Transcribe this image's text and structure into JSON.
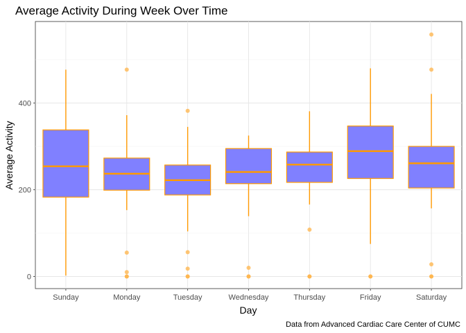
{
  "chart_data": {
    "type": "box",
    "title": "Average Activity During Week Over Time",
    "xlabel": "Day",
    "ylabel": "Average Activity",
    "caption": "Data from Advanced Cardiac Care Center of CUMC",
    "categories": [
      "Sunday",
      "Monday",
      "Tuesday",
      "Wednesday",
      "Thursday",
      "Friday",
      "Saturday"
    ],
    "y_ticks": [
      0,
      200,
      400
    ],
    "ylim": [
      -28,
      588
    ],
    "grid": true,
    "box_fill": "#8080ff",
    "line_color": "#ff9900",
    "outlier_color": "#ffb347",
    "boxes": [
      {
        "q1": 183,
        "median": 254,
        "q3": 338,
        "whisker_low": 2,
        "whisker_high": 477,
        "outliers": []
      },
      {
        "q1": 199,
        "median": 237,
        "q3": 273,
        "whisker_low": 153,
        "whisker_high": 372,
        "outliers": [
          477,
          55,
          10,
          0,
          0
        ]
      },
      {
        "q1": 188,
        "median": 222,
        "q3": 257,
        "whisker_low": 104,
        "whisker_high": 345,
        "outliers": [
          382,
          56,
          18,
          0,
          0
        ]
      },
      {
        "q1": 214,
        "median": 241,
        "q3": 295,
        "whisker_low": 139,
        "whisker_high": 325,
        "outliers": [
          20,
          0,
          0
        ]
      },
      {
        "q1": 217,
        "median": 258,
        "q3": 287,
        "whisker_low": 166,
        "whisker_high": 381,
        "outliers": [
          108,
          0,
          0
        ]
      },
      {
        "q1": 226,
        "median": 289,
        "q3": 347,
        "whisker_low": 75,
        "whisker_high": 480,
        "outliers": [
          0,
          0
        ]
      },
      {
        "q1": 204,
        "median": 261,
        "q3": 300,
        "whisker_low": 157,
        "whisker_high": 421,
        "outliers": [
          558,
          477,
          28,
          0,
          0
        ]
      }
    ]
  }
}
